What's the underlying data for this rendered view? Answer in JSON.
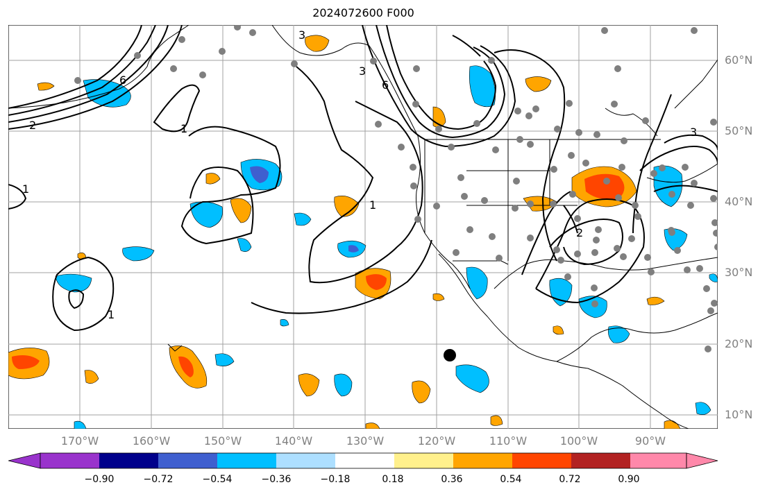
{
  "title": "2024072600 F000",
  "lat_labels": [
    "60°N",
    "50°N",
    "40°N",
    "30°N",
    "20°N",
    "10°N"
  ],
  "lon_labels": [
    "170°W",
    "160°W",
    "150°W",
    "140°W",
    "130°W",
    "120°W",
    "110°W",
    "100°W",
    "90°W"
  ],
  "contour_labels": [
    "1",
    "1",
    "1",
    "1",
    "2",
    "3",
    "3",
    "3",
    "6",
    "6",
    "2"
  ],
  "colorbar": {
    "ticks": [
      "−0.90",
      "−0.72",
      "−0.54",
      "−0.36",
      "−0.18",
      "0.18",
      "0.36",
      "0.54",
      "0.72",
      "0.90"
    ],
    "colors": [
      "#9933cc",
      "#00008b",
      "#3f5fcf",
      "#00bfff",
      "#addfff",
      "#ffffff",
      "#fff08c",
      "#ffa500",
      "#ff4500",
      "#b22222",
      "#ff88aa"
    ]
  },
  "colors": {
    "grid": "#a0a0a0",
    "axis_text": "#808080",
    "coast": "#000000",
    "station": "#7f7f7f"
  }
}
